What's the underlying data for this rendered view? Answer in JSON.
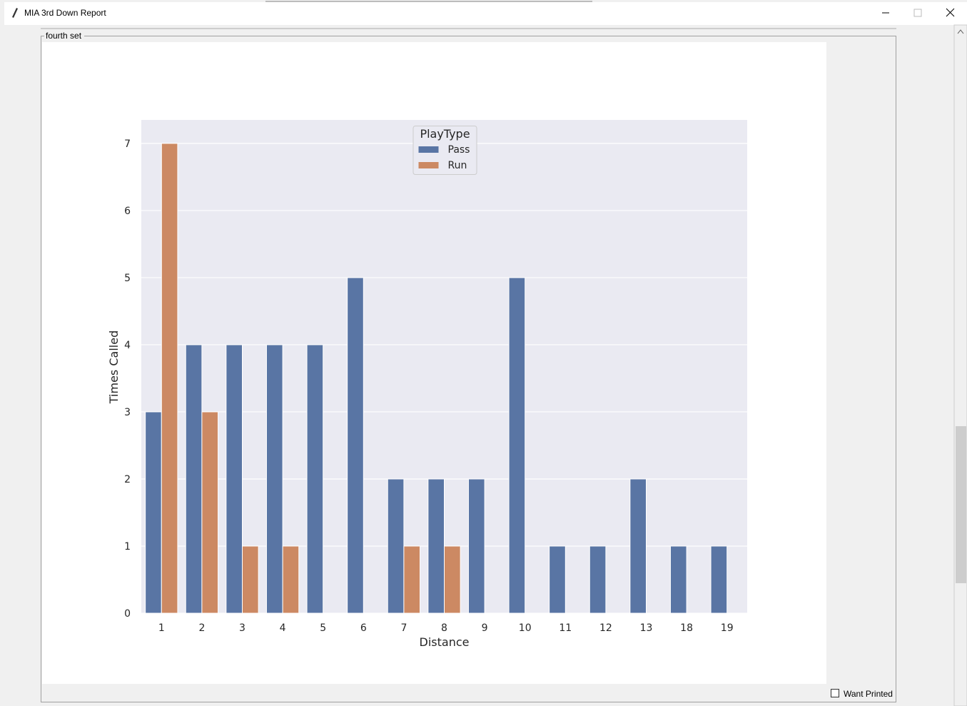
{
  "window": {
    "title": "MIA 3rd Down Report"
  },
  "frame": {
    "label": "fourth set"
  },
  "checkbox": {
    "label": "Want Printed",
    "checked": false
  },
  "chart_data": {
    "type": "bar",
    "xlabel": "Distance",
    "ylabel": "Times Called",
    "categories": [
      "1",
      "2",
      "3",
      "4",
      "5",
      "6",
      "7",
      "8",
      "9",
      "10",
      "11",
      "12",
      "13",
      "18",
      "19"
    ],
    "series": [
      {
        "name": "Pass",
        "color": "#5975a4",
        "values": [
          3,
          4,
          4,
          4,
          4,
          5,
          2,
          2,
          2,
          5,
          1,
          1,
          2,
          1,
          1
        ]
      },
      {
        "name": "Run",
        "color": "#cc8963",
        "values": [
          7,
          3,
          1,
          1,
          null,
          null,
          1,
          1,
          null,
          null,
          null,
          null,
          null,
          null,
          null
        ]
      }
    ],
    "ylim": [
      0,
      7.35
    ],
    "yticks": [
      0,
      1,
      2,
      3,
      4,
      5,
      6,
      7
    ],
    "grid": true,
    "legend": {
      "title": "PlayType",
      "position": "upper center"
    }
  }
}
